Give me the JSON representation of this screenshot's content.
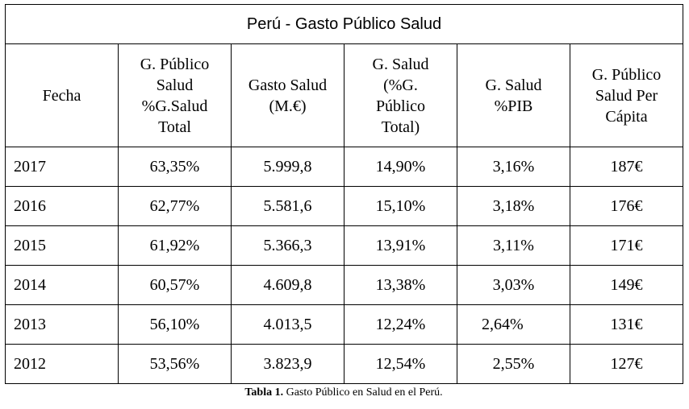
{
  "table": {
    "title": "Perú - Gasto Público Salud",
    "headers": [
      [
        "Fecha"
      ],
      [
        "G. Público",
        "Salud",
        "%G.Salud",
        "Total"
      ],
      [
        "Gasto Salud",
        "(M.€)"
      ],
      [
        "G. Salud",
        "(%G.",
        "Público",
        "Total)"
      ],
      [
        "G. Salud",
        "%PIB"
      ],
      [
        "G. Público",
        "Salud Per",
        "Cápita"
      ]
    ],
    "rows": [
      [
        "2017",
        "63,35%",
        "5.999,8",
        "14,90%",
        "3,16%",
        "187€"
      ],
      [
        "2016",
        "62,77%",
        "5.581,6",
        "15,10%",
        "3,18%",
        "176€"
      ],
      [
        "2015",
        "61,92%",
        "5.366,3",
        "13,91%",
        "3,11%",
        "171€"
      ],
      [
        "2014",
        "60,57%",
        "4.609,8",
        "13,38%",
        "3,03%",
        "149€"
      ],
      [
        "2013",
        "56,10%",
        "4.013,5",
        "12,24%",
        "2,64%",
        "131€"
      ],
      [
        "2012",
        "53,56%",
        "3.823,9",
        "12,54%",
        "2,55%",
        "127€"
      ]
    ]
  },
  "caption": {
    "label": "Tabla 1.",
    "text": " Gasto Público en Salud en el Perú."
  }
}
